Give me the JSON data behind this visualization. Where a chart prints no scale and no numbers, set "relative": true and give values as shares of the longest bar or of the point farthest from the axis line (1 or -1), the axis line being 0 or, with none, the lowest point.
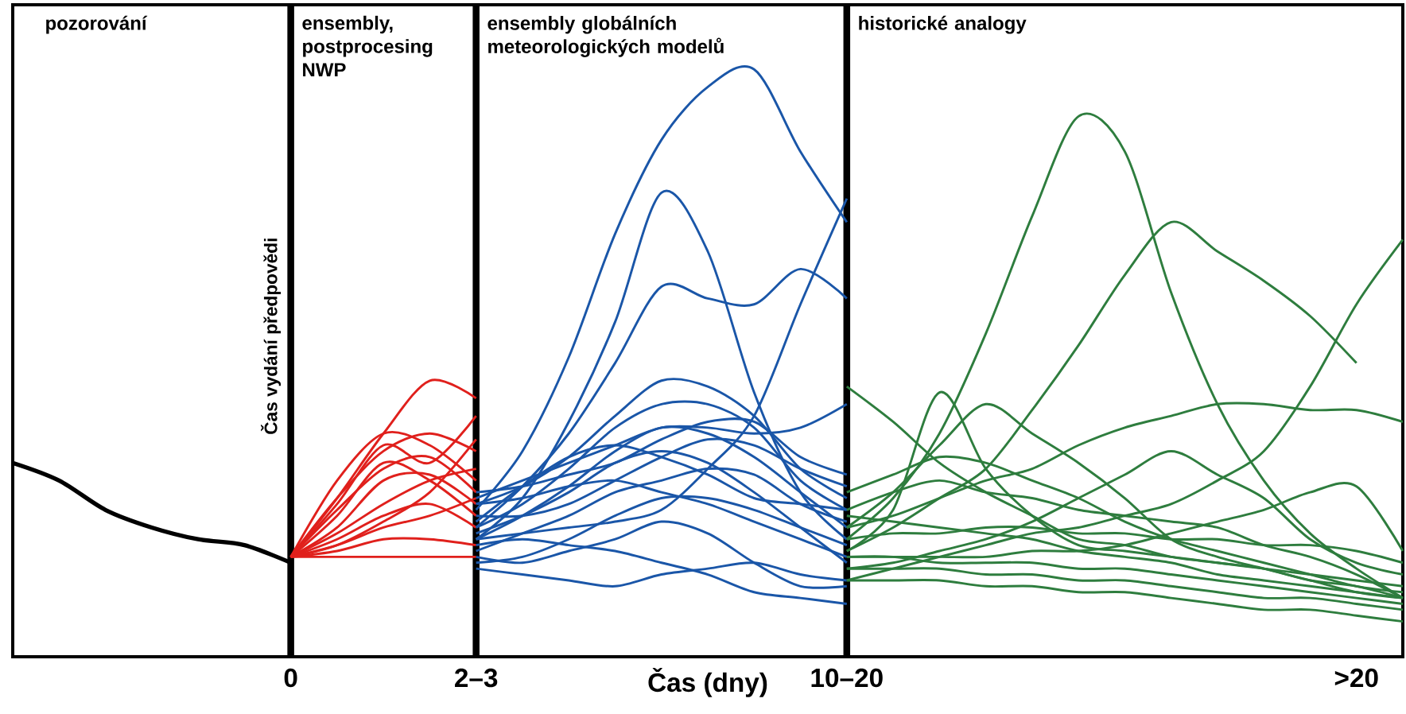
{
  "chart_data": {
    "type": "line",
    "relative": true,
    "xlabel": "Čas (dny)",
    "categories": [
      null,
      null,
      null,
      null,
      null,
      null,
      "0",
      null,
      null,
      null,
      "2–3",
      null,
      null,
      null,
      null,
      null,
      null,
      null,
      "10–20",
      null,
      null,
      null,
      null,
      null,
      null,
      null,
      null,
      null,
      null,
      ">20",
      null
    ],
    "tick_labels": "x",
    "annotations": [
      "pozorování",
      "ensembly, postprocesing NWP",
      "ensembly globálních meteorologických modelů",
      "historické analogy"
    ],
    "ref_lines": [
      {
        "axis": "x",
        "value": "0",
        "label": "Čas vydání předpovědi"
      },
      {
        "axis": "x",
        "value": "2–3"
      },
      {
        "axis": "x",
        "value": "10–20"
      }
    ],
    "series": [
      {
        "color": "#000000",
        "values": [
          0.33,
          0.3,
          0.25,
          0.22,
          0.2,
          0.19,
          0.16,
          null,
          null,
          null,
          null,
          null,
          null,
          null,
          null,
          null,
          null,
          null,
          null,
          null,
          null,
          null,
          null,
          null,
          null,
          null,
          null,
          null,
          null,
          null,
          null
        ]
      },
      {
        "color": "#e0201c",
        "values": [
          null,
          null,
          null,
          null,
          null,
          null,
          0.17,
          0.27,
          0.38,
          0.47,
          0.44,
          null,
          null,
          null,
          null,
          null,
          null,
          null,
          null,
          null,
          null,
          null,
          null,
          null,
          null,
          null,
          null,
          null,
          null,
          null,
          null
        ]
      },
      {
        "color": "#e0201c",
        "values": [
          null,
          null,
          null,
          null,
          null,
          null,
          0.17,
          0.3,
          0.38,
          0.36,
          0.3,
          null,
          null,
          null,
          null,
          null,
          null,
          null,
          null,
          null,
          null,
          null,
          null,
          null,
          null,
          null,
          null,
          null,
          null,
          null,
          null
        ]
      },
      {
        "color": "#e0201c",
        "values": [
          null,
          null,
          null,
          null,
          null,
          null,
          0.17,
          0.27,
          0.35,
          0.38,
          0.35,
          null,
          null,
          null,
          null,
          null,
          null,
          null,
          null,
          null,
          null,
          null,
          null,
          null,
          null,
          null,
          null,
          null,
          null,
          null,
          null
        ]
      },
      {
        "color": "#e0201c",
        "values": [
          null,
          null,
          null,
          null,
          null,
          null,
          0.17,
          0.25,
          0.32,
          0.34,
          0.28,
          null,
          null,
          null,
          null,
          null,
          null,
          null,
          null,
          null,
          null,
          null,
          null,
          null,
          null,
          null,
          null,
          null,
          null,
          null,
          null
        ]
      },
      {
        "color": "#e0201c",
        "values": [
          null,
          null,
          null,
          null,
          null,
          null,
          0.17,
          0.22,
          0.3,
          0.31,
          0.26,
          null,
          null,
          null,
          null,
          null,
          null,
          null,
          null,
          null,
          null,
          null,
          null,
          null,
          null,
          null,
          null,
          null,
          null,
          null,
          null
        ]
      },
      {
        "color": "#e0201c",
        "values": [
          null,
          null,
          null,
          null,
          null,
          null,
          0.17,
          0.21,
          0.26,
          0.3,
          0.32,
          null,
          null,
          null,
          null,
          null,
          null,
          null,
          null,
          null,
          null,
          null,
          null,
          null,
          null,
          null,
          null,
          null,
          null,
          null,
          null
        ]
      },
      {
        "color": "#e0201c",
        "values": [
          null,
          null,
          null,
          null,
          null,
          null,
          0.17,
          0.2,
          0.24,
          0.26,
          0.22,
          null,
          null,
          null,
          null,
          null,
          null,
          null,
          null,
          null,
          null,
          null,
          null,
          null,
          null,
          null,
          null,
          null,
          null,
          null,
          null
        ]
      },
      {
        "color": "#e0201c",
        "values": [
          null,
          null,
          null,
          null,
          null,
          null,
          0.17,
          0.19,
          0.22,
          0.24,
          0.27,
          null,
          null,
          null,
          null,
          null,
          null,
          null,
          null,
          null,
          null,
          null,
          null,
          null,
          null,
          null,
          null,
          null,
          null,
          null,
          null
        ]
      },
      {
        "color": "#e0201c",
        "values": [
          null,
          null,
          null,
          null,
          null,
          null,
          0.17,
          0.18,
          0.2,
          0.2,
          0.19,
          null,
          null,
          null,
          null,
          null,
          null,
          null,
          null,
          null,
          null,
          null,
          null,
          null,
          null,
          null,
          null,
          null,
          null,
          null,
          null
        ]
      },
      {
        "color": "#e0201c",
        "values": [
          null,
          null,
          null,
          null,
          null,
          null,
          0.17,
          0.17,
          0.17,
          0.17,
          0.17,
          null,
          null,
          null,
          null,
          null,
          null,
          null,
          null,
          null,
          null,
          null,
          null,
          null,
          null,
          null,
          null,
          null,
          null,
          null,
          null
        ]
      },
      {
        "color": "#e0201c",
        "values": [
          null,
          null,
          null,
          null,
          null,
          null,
          0.17,
          0.24,
          0.33,
          0.3,
          0.24,
          null,
          null,
          null,
          null,
          null,
          null,
          null,
          null,
          null,
          null,
          null,
          null,
          null,
          null,
          null,
          null,
          null,
          null,
          null,
          null
        ]
      },
      {
        "color": "#e0201c",
        "values": [
          null,
          null,
          null,
          null,
          null,
          null,
          0.17,
          0.26,
          0.36,
          0.33,
          0.41,
          null,
          null,
          null,
          null,
          null,
          null,
          null,
          null,
          null,
          null,
          null,
          null,
          null,
          null,
          null,
          null,
          null,
          null,
          null,
          null
        ]
      },
      {
        "color": "#e0201c",
        "values": [
          null,
          null,
          null,
          null,
          null,
          null,
          0.17,
          0.19,
          0.23,
          0.28,
          0.37,
          null,
          null,
          null,
          null,
          null,
          null,
          null,
          null,
          null,
          null,
          null,
          null,
          null,
          null,
          null,
          null,
          null,
          null,
          null,
          null
        ]
      },
      {
        "color": "#1a56a8",
        "values": [
          null,
          null,
          null,
          null,
          null,
          null,
          null,
          null,
          null,
          null,
          0.25,
          0.35,
          0.51,
          0.72,
          0.88,
          0.97,
          1.0,
          0.86,
          0.74,
          null,
          null,
          null,
          null,
          null,
          null,
          null,
          null,
          null,
          null,
          null,
          null
        ]
      },
      {
        "color": "#1a56a8",
        "values": [
          null,
          null,
          null,
          null,
          null,
          null,
          null,
          null,
          null,
          null,
          0.2,
          0.27,
          0.4,
          0.57,
          0.79,
          0.69,
          0.45,
          0.28,
          0.2,
          null,
          null,
          null,
          null,
          null,
          null,
          null,
          null,
          null,
          null,
          null,
          null
        ]
      },
      {
        "color": "#1a56a8",
        "values": [
          null,
          null,
          null,
          null,
          null,
          null,
          null,
          null,
          null,
          null,
          0.22,
          0.29,
          0.38,
          0.5,
          0.63,
          0.61,
          0.6,
          0.66,
          0.61,
          null,
          null,
          null,
          null,
          null,
          null,
          null,
          null,
          null,
          null,
          null,
          null
        ]
      },
      {
        "color": "#1a56a8",
        "values": [
          null,
          null,
          null,
          null,
          null,
          null,
          null,
          null,
          null,
          null,
          0.2,
          0.21,
          0.22,
          0.23,
          0.25,
          0.32,
          0.41,
          0.6,
          0.78,
          null,
          null,
          null,
          null,
          null,
          null,
          null,
          null,
          null,
          null,
          null,
          null
        ]
      },
      {
        "color": "#1a56a8",
        "values": [
          null,
          null,
          null,
          null,
          null,
          null,
          null,
          null,
          null,
          null,
          0.27,
          0.3,
          0.33,
          0.36,
          0.39,
          0.39,
          0.38,
          0.39,
          0.43,
          null,
          null,
          null,
          null,
          null,
          null,
          null,
          null,
          null,
          null,
          null,
          null
        ]
      },
      {
        "color": "#1a56a8",
        "values": [
          null,
          null,
          null,
          null,
          null,
          null,
          null,
          null,
          null,
          null,
          0.26,
          0.29,
          0.34,
          0.41,
          0.47,
          0.46,
          0.41,
          0.32,
          0.27,
          null,
          null,
          null,
          null,
          null,
          null,
          null,
          null,
          null,
          null,
          null,
          null
        ]
      },
      {
        "color": "#1a56a8",
        "values": [
          null,
          null,
          null,
          null,
          null,
          null,
          null,
          null,
          null,
          null,
          0.22,
          0.26,
          0.32,
          0.39,
          0.43,
          0.43,
          0.39,
          0.3,
          0.25,
          null,
          null,
          null,
          null,
          null,
          null,
          null,
          null,
          null,
          null,
          null,
          null
        ]
      },
      {
        "color": "#1a56a8",
        "values": [
          null,
          null,
          null,
          null,
          null,
          null,
          null,
          null,
          null,
          null,
          0.2,
          0.24,
          0.29,
          0.35,
          0.39,
          0.38,
          0.34,
          0.28,
          0.22,
          null,
          null,
          null,
          null,
          null,
          null,
          null,
          null,
          null,
          null,
          null,
          null
        ]
      },
      {
        "color": "#1a56a8",
        "values": [
          null,
          null,
          null,
          null,
          null,
          null,
          null,
          null,
          null,
          null,
          0.24,
          0.24,
          0.26,
          0.3,
          0.34,
          0.37,
          0.36,
          0.32,
          0.29,
          null,
          null,
          null,
          null,
          null,
          null,
          null,
          null,
          null,
          null,
          null,
          null
        ]
      },
      {
        "color": "#1a56a8",
        "values": [
          null,
          null,
          null,
          null,
          null,
          null,
          null,
          null,
          null,
          null,
          0.18,
          0.21,
          0.24,
          0.28,
          0.3,
          0.32,
          0.31,
          0.26,
          0.23,
          null,
          null,
          null,
          null,
          null,
          null,
          null,
          null,
          null,
          null,
          null,
          null
        ]
      },
      {
        "color": "#1a56a8",
        "values": [
          null,
          null,
          null,
          null,
          null,
          null,
          null,
          null,
          null,
          null,
          0.16,
          0.17,
          0.2,
          0.24,
          0.27,
          0.27,
          0.25,
          0.22,
          0.19,
          null,
          null,
          null,
          null,
          null,
          null,
          null,
          null,
          null,
          null,
          null,
          null
        ]
      },
      {
        "color": "#1a56a8",
        "values": [
          null,
          null,
          null,
          null,
          null,
          null,
          null,
          null,
          null,
          null,
          0.15,
          0.14,
          0.13,
          0.12,
          0.14,
          0.15,
          0.16,
          0.14,
          0.13,
          null,
          null,
          null,
          null,
          null,
          null,
          null,
          null,
          null,
          null,
          null,
          null
        ]
      },
      {
        "color": "#1a56a8",
        "values": [
          null,
          null,
          null,
          null,
          null,
          null,
          null,
          null,
          null,
          null,
          0.26,
          0.27,
          0.29,
          0.3,
          0.28,
          0.26,
          0.23,
          0.2,
          0.17,
          null,
          null,
          null,
          null,
          null,
          null,
          null,
          null,
          null,
          null,
          null,
          null
        ]
      },
      {
        "color": "#1a56a8",
        "values": [
          null,
          null,
          null,
          null,
          null,
          null,
          null,
          null,
          null,
          null,
          0.19,
          0.2,
          0.19,
          0.18,
          0.16,
          0.14,
          0.11,
          0.1,
          0.09,
          null,
          null,
          null,
          null,
          null,
          null,
          null,
          null,
          null,
          null,
          null,
          null
        ]
      },
      {
        "color": "#1a56a8",
        "values": [
          null,
          null,
          null,
          null,
          null,
          null,
          null,
          null,
          null,
          null,
          0.21,
          0.24,
          0.28,
          0.33,
          0.35,
          0.33,
          0.28,
          0.22,
          0.16,
          null,
          null,
          null,
          null,
          null,
          null,
          null,
          null,
          null,
          null,
          null,
          null
        ]
      },
      {
        "color": "#1a56a8",
        "values": [
          null,
          null,
          null,
          null,
          null,
          null,
          null,
          null,
          null,
          null,
          0.17,
          0.16,
          0.18,
          0.2,
          0.23,
          0.21,
          0.16,
          0.12,
          0.12,
          null,
          null,
          null,
          null,
          null,
          null,
          null,
          null,
          null,
          null,
          null,
          null
        ]
      },
      {
        "color": "#1a56a8",
        "values": [
          null,
          null,
          null,
          null,
          null,
          null,
          null,
          null,
          null,
          null,
          0.23,
          0.29,
          0.34,
          0.36,
          0.34,
          0.31,
          0.27,
          0.26,
          0.25,
          null,
          null,
          null,
          null,
          null,
          null,
          null,
          null,
          null,
          null,
          null,
          null
        ]
      },
      {
        "color": "#1a56a8",
        "values": [
          null,
          null,
          null,
          null,
          null,
          null,
          null,
          null,
          null,
          null,
          0.28,
          0.29,
          0.31,
          0.33,
          0.37,
          0.4,
          0.4,
          0.34,
          0.31,
          null,
          null,
          null,
          null,
          null,
          null,
          null,
          null,
          null,
          null,
          null,
          null
        ]
      },
      {
        "color": "#2e7d3e",
        "values": [
          null,
          null,
          null,
          null,
          null,
          null,
          null,
          null,
          null,
          null,
          null,
          null,
          null,
          null,
          null,
          null,
          null,
          null,
          0.2,
          0.27,
          0.38,
          0.55,
          0.75,
          0.92,
          0.86,
          0.62,
          0.43,
          0.3,
          0.21,
          0.15,
          0.1
        ]
      },
      {
        "color": "#2e7d3e",
        "values": [
          null,
          null,
          null,
          null,
          null,
          null,
          null,
          null,
          null,
          null,
          null,
          null,
          null,
          null,
          null,
          null,
          null,
          null,
          0.18,
          0.22,
          0.27,
          0.32,
          0.42,
          0.53,
          0.65,
          0.74,
          0.69,
          0.64,
          0.58,
          0.5,
          null
        ]
      },
      {
        "color": "#2e7d3e",
        "values": [
          null,
          null,
          null,
          null,
          null,
          null,
          null,
          null,
          null,
          null,
          null,
          null,
          null,
          null,
          null,
          null,
          null,
          null,
          0.13,
          0.15,
          0.17,
          0.19,
          0.21,
          0.22,
          0.24,
          0.26,
          0.3,
          0.35,
          0.46,
          0.6,
          0.71
        ]
      },
      {
        "color": "#2e7d3e",
        "values": [
          null,
          null,
          null,
          null,
          null,
          null,
          null,
          null,
          null,
          null,
          null,
          null,
          null,
          null,
          null,
          null,
          null,
          null,
          0.22,
          0.24,
          0.27,
          0.3,
          0.32,
          0.36,
          0.39,
          0.41,
          0.43,
          0.43,
          0.42,
          0.42,
          0.4
        ]
      },
      {
        "color": "#2e7d3e",
        "values": [
          null,
          null,
          null,
          null,
          null,
          null,
          null,
          null,
          null,
          null,
          null,
          null,
          null,
          null,
          null,
          null,
          null,
          null,
          0.18,
          0.25,
          0.45,
          0.32,
          0.24,
          0.19,
          0.18,
          0.17,
          0.16,
          0.15,
          0.13,
          0.12,
          0.1
        ]
      },
      {
        "color": "#2e7d3e",
        "values": [
          null,
          null,
          null,
          null,
          null,
          null,
          null,
          null,
          null,
          null,
          null,
          null,
          null,
          null,
          null,
          null,
          null,
          null,
          0.22,
          0.28,
          0.36,
          0.43,
          0.38,
          0.33,
          0.27,
          0.2,
          0.17,
          0.15,
          0.13,
          0.11,
          0.1
        ]
      },
      {
        "color": "#2e7d3e",
        "values": [
          null,
          null,
          null,
          null,
          null,
          null,
          null,
          null,
          null,
          null,
          null,
          null,
          null,
          null,
          null,
          null,
          null,
          null,
          0.46,
          0.4,
          0.33,
          0.28,
          0.24,
          0.2,
          0.19,
          0.17,
          0.16,
          0.15,
          0.14,
          0.13,
          0.12
        ]
      },
      {
        "color": "#2e7d3e",
        "values": [
          null,
          null,
          null,
          null,
          null,
          null,
          null,
          null,
          null,
          null,
          null,
          null,
          null,
          null,
          null,
          null,
          null,
          null,
          0.15,
          0.16,
          0.18,
          0.2,
          0.23,
          0.27,
          0.31,
          0.35,
          0.31,
          0.27,
          0.2,
          0.16,
          0.14
        ]
      },
      {
        "color": "#2e7d3e",
        "values": [
          null,
          null,
          null,
          null,
          null,
          null,
          null,
          null,
          null,
          null,
          null,
          null,
          null,
          null,
          null,
          null,
          null,
          null,
          0.17,
          0.17,
          0.17,
          0.17,
          0.18,
          0.18,
          0.19,
          0.21,
          0.23,
          0.25,
          0.28,
          0.29,
          0.18
        ]
      },
      {
        "color": "#2e7d3e",
        "values": [
          null,
          null,
          null,
          null,
          null,
          null,
          null,
          null,
          null,
          null,
          null,
          null,
          null,
          null,
          null,
          null,
          null,
          null,
          0.25,
          0.28,
          0.3,
          0.28,
          0.27,
          0.25,
          0.24,
          0.23,
          0.22,
          0.19,
          0.17,
          0.14,
          0.1
        ]
      },
      {
        "color": "#2e7d3e",
        "values": [
          null,
          null,
          null,
          null,
          null,
          null,
          null,
          null,
          null,
          null,
          null,
          null,
          null,
          null,
          null,
          null,
          null,
          null,
          0.2,
          0.21,
          0.21,
          0.22,
          0.22,
          0.21,
          0.21,
          0.2,
          0.2,
          0.19,
          0.19,
          0.18,
          0.16
        ]
      },
      {
        "color": "#2e7d3e",
        "values": [
          null,
          null,
          null,
          null,
          null,
          null,
          null,
          null,
          null,
          null,
          null,
          null,
          null,
          null,
          null,
          null,
          null,
          null,
          0.15,
          0.15,
          0.15,
          0.14,
          0.14,
          0.13,
          0.13,
          0.12,
          0.11,
          0.1,
          0.1,
          0.09,
          0.08
        ]
      },
      {
        "color": "#2e7d3e",
        "values": [
          null,
          null,
          null,
          null,
          null,
          null,
          null,
          null,
          null,
          null,
          null,
          null,
          null,
          null,
          null,
          null,
          null,
          null,
          0.13,
          0.13,
          0.13,
          0.12,
          0.12,
          0.11,
          0.11,
          0.1,
          0.09,
          0.08,
          0.08,
          0.07,
          0.06
        ]
      },
      {
        "color": "#2e7d3e",
        "values": [
          null,
          null,
          null,
          null,
          null,
          null,
          null,
          null,
          null,
          null,
          null,
          null,
          null,
          null,
          null,
          null,
          null,
          null,
          0.28,
          0.31,
          0.34,
          0.33,
          0.3,
          0.27,
          0.23,
          0.2,
          0.18,
          0.16,
          0.14,
          0.12,
          0.11
        ]
      },
      {
        "color": "#2e7d3e",
        "values": [
          null,
          null,
          null,
          null,
          null,
          null,
          null,
          null,
          null,
          null,
          null,
          null,
          null,
          null,
          null,
          null,
          null,
          null,
          0.17,
          0.17,
          0.16,
          0.16,
          0.16,
          0.15,
          0.15,
          0.14,
          0.13,
          0.12,
          0.11,
          0.1,
          0.09
        ]
      },
      {
        "color": "#2e7d3e",
        "values": [
          null,
          null,
          null,
          null,
          null,
          null,
          null,
          null,
          null,
          null,
          null,
          null,
          null,
          null,
          null,
          null,
          null,
          null,
          0.24,
          0.23,
          0.22,
          0.21,
          0.2,
          0.18,
          0.17,
          0.16,
          0.14,
          0.13,
          0.12,
          0.11,
          0.1
        ]
      }
    ]
  }
}
